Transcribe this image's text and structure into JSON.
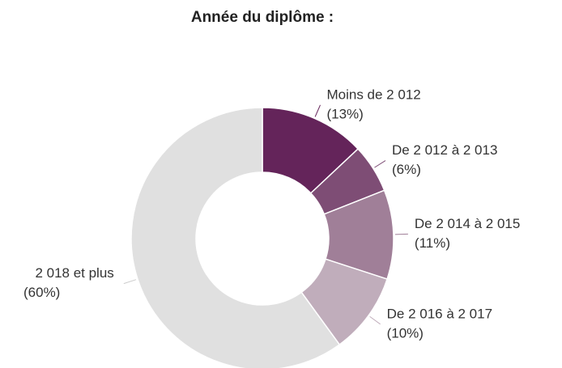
{
  "chart_data": {
    "type": "donut",
    "title": "Année du diplôme :",
    "categories": [
      "Moins de 2 012",
      "De 2 012 à 2 013",
      "De 2 014 à 2 015",
      "De 2 016 à 2 017",
      "2 018 et plus"
    ],
    "values": [
      13,
      6,
      11,
      10,
      60
    ],
    "value_labels": [
      "(13%)",
      "(6%)",
      "(11%)",
      "(10%)",
      "(60%)"
    ],
    "colors": [
      "#64245a",
      "#7e4d75",
      "#a07f98",
      "#c0adbb",
      "#e0e0e0"
    ]
  }
}
